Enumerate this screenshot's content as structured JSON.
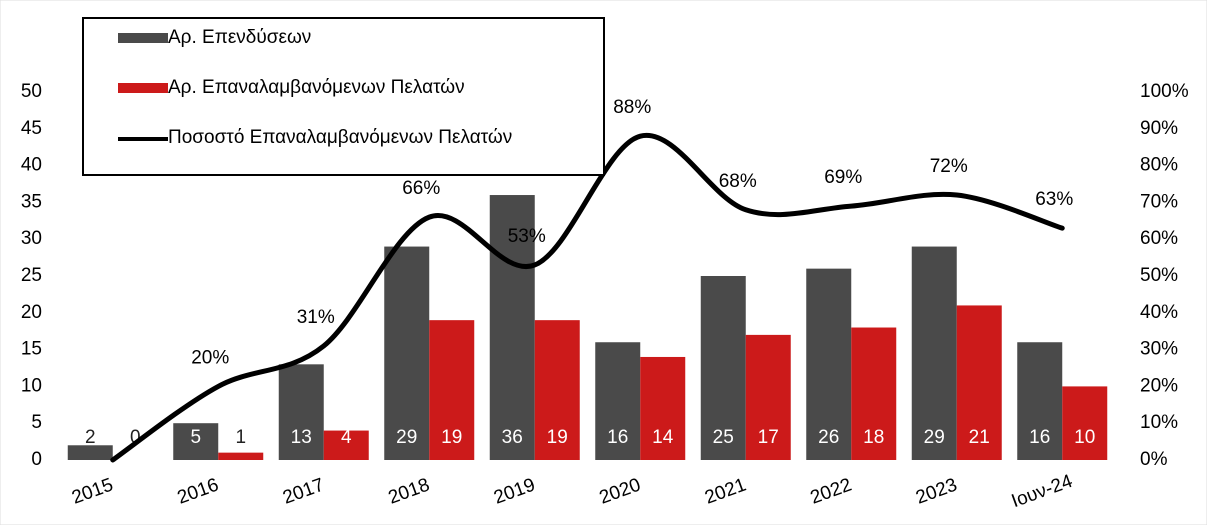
{
  "chart_data": {
    "type": "bar-line",
    "categories": [
      "2015",
      "2016",
      "2017",
      "2018",
      "2019",
      "2020",
      "2021",
      "2022",
      "2023",
      "Ιουν-24"
    ],
    "series": [
      {
        "name": "Αρ. Επενδύσεων",
        "type": "bar",
        "color": "#4a4a4a",
        "values": [
          2,
          5,
          13,
          29,
          36,
          16,
          25,
          26,
          29,
          16
        ]
      },
      {
        "name": "Αρ. Επαναλαμβανόμενων Πελατών",
        "type": "bar",
        "color": "#cc1a1a",
        "values": [
          0,
          1,
          4,
          19,
          19,
          14,
          17,
          18,
          21,
          10
        ]
      },
      {
        "name": "Ποσοστό Επαναλαμβανόμενων Πελατών",
        "type": "line",
        "axis": "y2",
        "color": "#000000",
        "values": [
          0,
          20,
          31,
          66,
          53,
          88,
          68,
          69,
          72,
          63
        ],
        "value_labels": [
          null,
          "20%",
          "31%",
          "66%",
          "53%",
          "88%",
          "68%",
          "69%",
          "72%",
          "63%"
        ]
      }
    ],
    "ylim": [
      0,
      50
    ],
    "yticks": [
      0,
      5,
      10,
      15,
      20,
      25,
      30,
      35,
      40,
      45,
      50
    ],
    "y2lim": [
      0,
      100
    ],
    "y2ticks": [
      {
        "value": 0,
        "label": "0%"
      },
      {
        "value": 10,
        "label": "10%"
      },
      {
        "value": 20,
        "label": "20%"
      },
      {
        "value": 30,
        "label": "30%"
      },
      {
        "value": 40,
        "label": "40%"
      },
      {
        "value": 50,
        "label": "50%"
      },
      {
        "value": 60,
        "label": "60%"
      },
      {
        "value": 70,
        "label": "70%"
      },
      {
        "value": 80,
        "label": "80%"
      },
      {
        "value": 90,
        "label": "90%"
      },
      {
        "value": 100,
        "label": "100%"
      }
    ],
    "legend": "top-left",
    "grid": false
  }
}
